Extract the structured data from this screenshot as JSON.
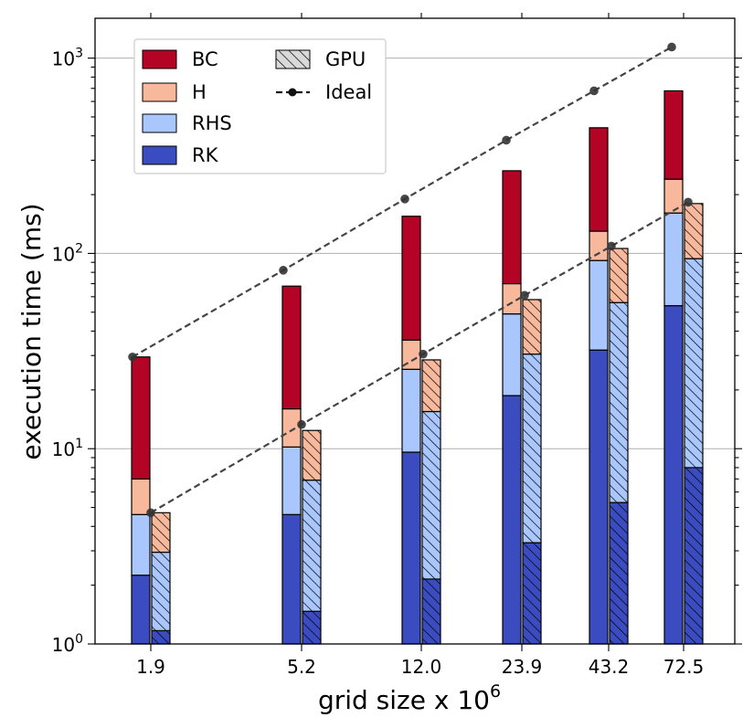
{
  "chart_data": {
    "type": "bar",
    "subtype": "stacked-log-bar-with-lines",
    "title": "",
    "xlabel": "grid size x 10",
    "xlabel_superscript": "6",
    "ylabel": "execution time (ms)",
    "yscale": "log",
    "ylim": [
      1,
      1600
    ],
    "y_ticks": [
      {
        "value": 1,
        "base": "10",
        "exp": "0"
      },
      {
        "value": 10,
        "base": "10",
        "exp": "1"
      },
      {
        "value": 100,
        "base": "10",
        "exp": "2"
      },
      {
        "value": 1000,
        "base": "10",
        "exp": "3"
      }
    ],
    "grid": "horizontal major",
    "categories": [
      "1.9",
      "5.2",
      "12.0",
      "23.9",
      "43.2",
      "72.5"
    ],
    "stack_order": [
      "RK",
      "RHS",
      "H",
      "BC"
    ],
    "colors": {
      "RK": "#3b4cc0",
      "RHS": "#aac7fd",
      "H": "#f7b89c",
      "BC": "#b40426"
    },
    "cpu_cumulative": {
      "RK": [
        2.25,
        4.6,
        9.6,
        18.7,
        32,
        54
      ],
      "RHS": [
        4.6,
        10.2,
        25.5,
        49,
        92,
        161
      ],
      "H": [
        7.0,
        16,
        36,
        70,
        130,
        240
      ],
      "BC": [
        29.5,
        68,
        155,
        265,
        440,
        680
      ]
    },
    "gpu_cumulative": {
      "RK": [
        1.17,
        1.47,
        2.15,
        3.3,
        5.3,
        8.0
      ],
      "RHS": [
        2.95,
        6.9,
        15.5,
        30.5,
        56,
        94
      ],
      "H": [
        4.7,
        12.4,
        28.5,
        58,
        106,
        180
      ]
    },
    "ideal_cpu": [
      29.5,
      82,
      190,
      380,
      680,
      1140
    ],
    "ideal_gpu": [
      4.7,
      13.3,
      30.5,
      61,
      109,
      183
    ],
    "legend": {
      "position": "top-left",
      "entries": [
        {
          "label": "BC",
          "kind": "patch",
          "color": "#b40426"
        },
        {
          "label": "H",
          "kind": "patch",
          "color": "#f7b89c"
        },
        {
          "label": "RHS",
          "kind": "patch",
          "color": "#aac7fd"
        },
        {
          "label": "RK",
          "kind": "patch",
          "color": "#3b4cc0"
        },
        {
          "label": "GPU",
          "kind": "hatch",
          "color": "#d9d9d9"
        },
        {
          "label": "Ideal",
          "kind": "line",
          "color": "#111111"
        }
      ]
    },
    "line_color": "#444444"
  }
}
